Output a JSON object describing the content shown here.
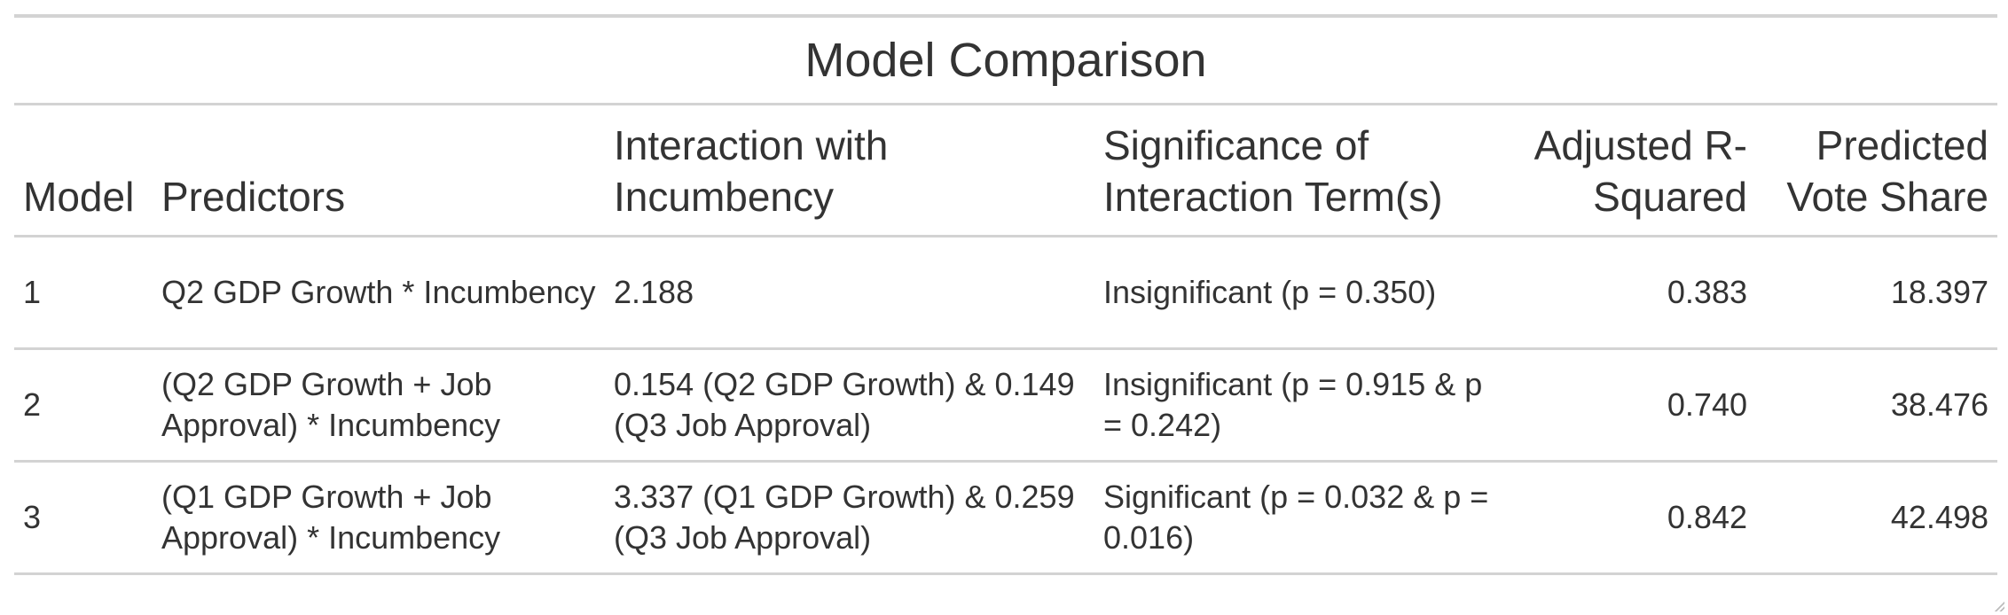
{
  "table": {
    "title": "Model Comparison",
    "columns": [
      "Model",
      "Predictors",
      "Interaction with Incumbency",
      "Significance of Interaction Term(s)",
      "Adjusted R-Squared",
      "Predicted Vote Share"
    ],
    "rows": [
      {
        "model": "1",
        "predictors": "Q2 GDP Growth * Incumbency",
        "interaction": "2.188",
        "significance": "Insignificant (p = 0.350)",
        "adj_r2": "0.383",
        "vote_share": "18.397"
      },
      {
        "model": "2",
        "predictors": "(Q2 GDP Growth + Job Approval) * Incumbency",
        "interaction": "0.154 (Q2 GDP Growth) & 0.149 (Q3 Job Approval)",
        "significance": "Insignificant (p = 0.915 & p = 0.242)",
        "adj_r2": "0.740",
        "vote_share": "38.476"
      },
      {
        "model": "3",
        "predictors": "(Q1 GDP Growth + Job Approval) * Incumbency",
        "interaction": "3.337 (Q1 GDP Growth) & 0.259 (Q3 Job Approval)",
        "significance": "Significant (p = 0.032 & p = 0.016)",
        "adj_r2": "0.842",
        "vote_share": "42.498"
      }
    ]
  }
}
